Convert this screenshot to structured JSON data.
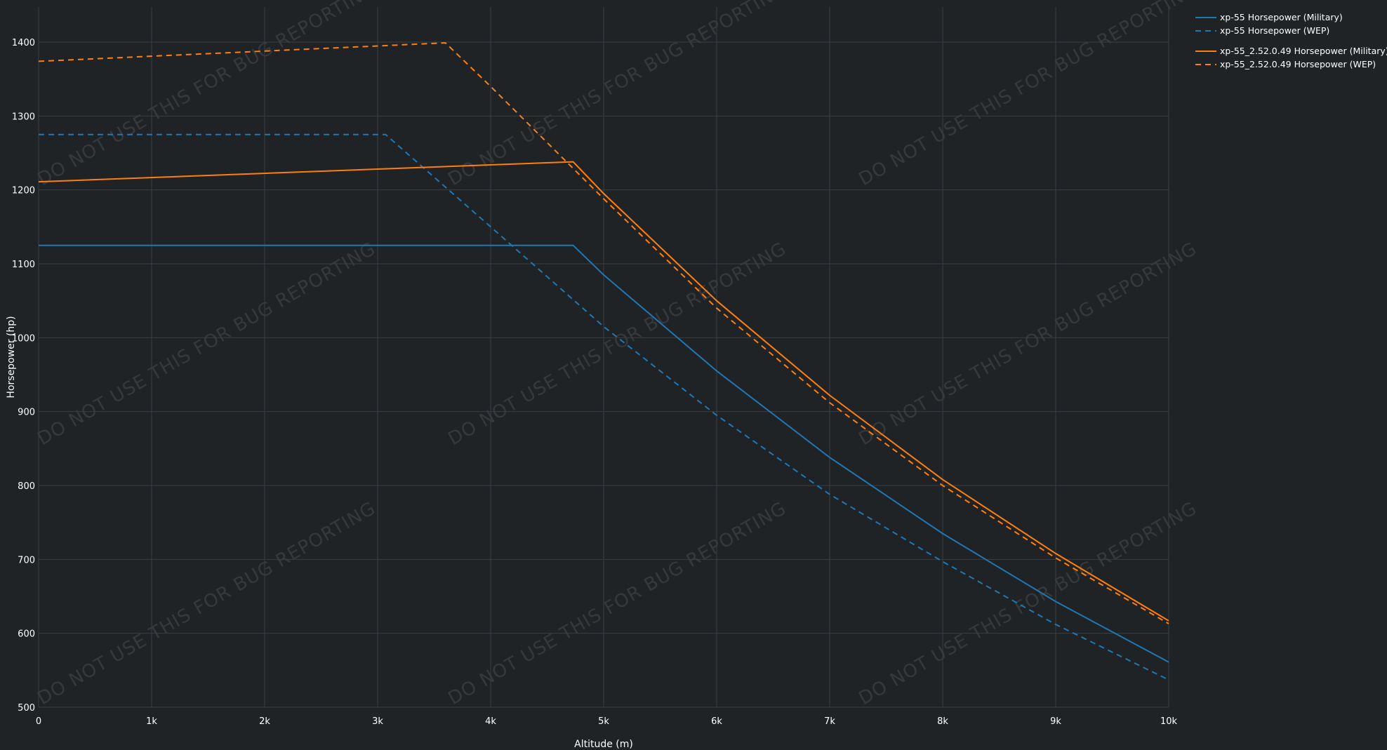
{
  "chart_data": {
    "type": "line",
    "xlabel": "Altitude (m)",
    "ylabel": "Horsepower (hp)",
    "xlim": [
      0,
      10000
    ],
    "ylim": [
      500,
      1410
    ],
    "x_ticks": [
      0,
      1000,
      2000,
      3000,
      4000,
      5000,
      6000,
      7000,
      8000,
      9000,
      10000
    ],
    "x_tick_labels": [
      "0",
      "1k",
      "2k",
      "3k",
      "4k",
      "5k",
      "6k",
      "7k",
      "8k",
      "9k",
      "10k"
    ],
    "y_ticks": [
      500,
      600,
      700,
      800,
      900,
      1000,
      1100,
      1200,
      1300,
      1400
    ],
    "y_tick_labels": [
      "500",
      "600",
      "700",
      "800",
      "900",
      "1000",
      "1100",
      "1200",
      "1300",
      "1400"
    ],
    "grid": true,
    "legend_position": "top-right",
    "watermark": "DO NOT USE THIS FOR BUG REPORTING",
    "series": [
      {
        "name": "xp-55 Horsepower (Military)",
        "color": "#1f77b4",
        "dash": "solid",
        "x": [
          0,
          4730,
          5000,
          6000,
          7000,
          8000,
          9000,
          10000
        ],
        "y": [
          1125,
          1125,
          1085,
          955,
          838,
          735,
          643,
          561
        ]
      },
      {
        "name": "xp-55 Horsepower (WEP)",
        "color": "#1f77b4",
        "dash": "dashed",
        "x": [
          0,
          3070,
          4000,
          5000,
          6000,
          7000,
          8000,
          9000,
          10000
        ],
        "y": [
          1275,
          1275,
          1150,
          1015,
          895,
          788,
          697,
          612,
          537
        ]
      },
      {
        "name": "xp-55_2.52.0.49 Horsepower (Military)",
        "color": "#ff7f0e",
        "dash": "solid",
        "x": [
          0,
          4730,
          5000,
          6000,
          7000,
          8000,
          9000,
          10000
        ],
        "y": [
          1211,
          1238,
          1195,
          1050,
          922,
          808,
          708,
          617
        ]
      },
      {
        "name": "xp-55_2.52.0.49 Horsepower (WEP)",
        "color": "#ff7f0e",
        "dash": "dashed",
        "x": [
          0,
          3600,
          4000,
          5000,
          6000,
          7000,
          8000,
          9000,
          10000
        ],
        "y": [
          1374,
          1399,
          1340,
          1188,
          1040,
          912,
          800,
          702,
          613
        ]
      }
    ]
  }
}
